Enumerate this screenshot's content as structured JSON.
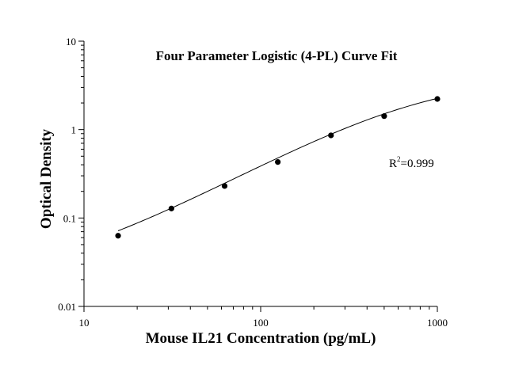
{
  "chart_data": {
    "type": "scatter",
    "title": "Four Parameter Logistic (4-PL) Curve Fit",
    "xlabel": "Mouse IL21 Concentration (pg/mL)",
    "ylabel": "Optical Density",
    "x_scale": "log",
    "y_scale": "log",
    "xlim": [
      10,
      1000
    ],
    "ylim": [
      0.01,
      10
    ],
    "x_ticks": [
      10,
      100,
      1000
    ],
    "x_tick_labels": [
      "10",
      "100",
      "1000"
    ],
    "y_ticks": [
      0.01,
      0.1,
      1,
      10
    ],
    "y_tick_labels": [
      "0.01",
      "0.1",
      "1",
      "10"
    ],
    "grid": false,
    "legend": "none",
    "annotation": {
      "base": "R",
      "sup": "2",
      "rest": "=0.999"
    },
    "series": [
      {
        "points": [
          {
            "x": 15.6,
            "y": 0.063
          },
          {
            "x": 31.25,
            "y": 0.128
          },
          {
            "x": 62.5,
            "y": 0.23
          },
          {
            "x": 125,
            "y": 0.43
          },
          {
            "x": 250,
            "y": 0.86
          },
          {
            "x": 500,
            "y": 1.42
          },
          {
            "x": 1000,
            "y": 2.22
          }
        ]
      }
    ],
    "fit_curve": {
      "model": "4PL",
      "A": 0.02,
      "B": 1.1,
      "C": 800,
      "D": 4.0,
      "x_range": [
        15.6,
        1000
      ]
    },
    "colors": {
      "marker": "#000000",
      "line": "#000000",
      "axis": "#000000"
    }
  }
}
